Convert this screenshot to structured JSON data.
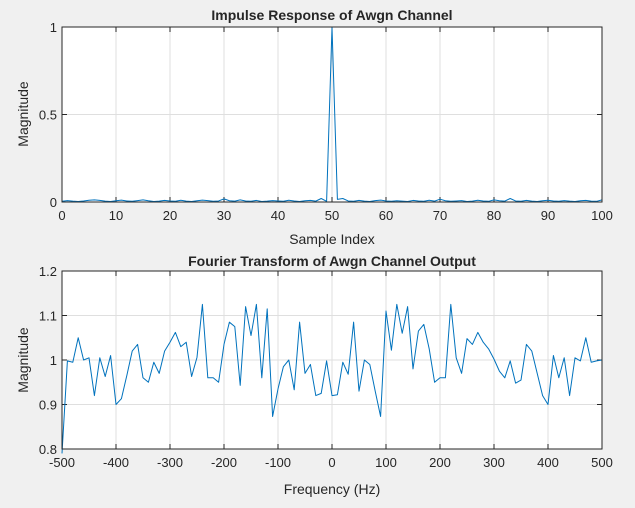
{
  "chart_data": [
    {
      "type": "line",
      "title": "Impulse Response of Awgn Channel",
      "xlabel": "Sample Index",
      "ylabel": "Magnitude",
      "xlim": [
        0,
        100
      ],
      "ylim": [
        0,
        1
      ],
      "xticks": [
        0,
        10,
        20,
        30,
        40,
        50,
        60,
        70,
        80,
        90,
        100
      ],
      "yticks": [
        0,
        0.5,
        1
      ],
      "grid": true,
      "series_color": "#0072bd",
      "x": [
        0,
        1,
        2,
        3,
        4,
        5,
        6,
        7,
        8,
        9,
        10,
        11,
        12,
        13,
        14,
        15,
        16,
        17,
        18,
        19,
        20,
        21,
        22,
        23,
        24,
        25,
        26,
        27,
        28,
        29,
        30,
        31,
        32,
        33,
        34,
        35,
        36,
        37,
        38,
        39,
        40,
        41,
        42,
        43,
        44,
        45,
        46,
        47,
        48,
        49,
        50,
        51,
        52,
        53,
        54,
        55,
        56,
        57,
        58,
        59,
        60,
        61,
        62,
        63,
        64,
        65,
        66,
        67,
        68,
        69,
        70,
        71,
        72,
        73,
        74,
        75,
        76,
        77,
        78,
        79,
        80,
        81,
        82,
        83,
        84,
        85,
        86,
        87,
        88,
        89,
        90,
        91,
        92,
        93,
        94,
        95,
        96,
        97,
        98,
        99,
        100
      ],
      "y": [
        0.004,
        0.008,
        0.005,
        0.003,
        0.006,
        0.01,
        0.012,
        0.009,
        0.005,
        0.003,
        0.007,
        0.011,
        0.006,
        0.004,
        0.008,
        0.012,
        0.007,
        0.003,
        0.005,
        0.009,
        0.006,
        0.004,
        0.01,
        0.005,
        0.003,
        0.007,
        0.011,
        0.008,
        0.004,
        0.006,
        0.018,
        0.007,
        0.005,
        0.012,
        0.006,
        0.004,
        0.009,
        0.003,
        0.005,
        0.008,
        0.006,
        0.004,
        0.01,
        0.006,
        0.003,
        0.007,
        0.009,
        0.005,
        0.02,
        0.004,
        1.0,
        0.015,
        0.02,
        0.006,
        0.004,
        0.009,
        0.005,
        0.003,
        0.008,
        0.011,
        0.006,
        0.004,
        0.007,
        0.005,
        0.003,
        0.009,
        0.006,
        0.004,
        0.01,
        0.005,
        0.016,
        0.007,
        0.004,
        0.006,
        0.008,
        0.003,
        0.005,
        0.01,
        0.006,
        0.004,
        0.012,
        0.007,
        0.005,
        0.02,
        0.006,
        0.004,
        0.009,
        0.005,
        0.003,
        0.007,
        0.01,
        0.006,
        0.004,
        0.008,
        0.005,
        0.003,
        0.007,
        0.009,
        0.005,
        0.004,
        0.012
      ]
    },
    {
      "type": "line",
      "title": "Fourier Transform of Awgn Channel Output",
      "xlabel": "Frequency (Hz)",
      "ylabel": "Magnitude",
      "xlim": [
        -500,
        500
      ],
      "ylim": [
        0.8,
        1.2
      ],
      "xticks": [
        -500,
        -400,
        -300,
        -200,
        -100,
        0,
        100,
        200,
        300,
        400,
        500
      ],
      "yticks": [
        0.8,
        0.9,
        1,
        1.1,
        1.2
      ],
      "grid": true,
      "series_color": "#0072bd",
      "x": [
        -500,
        -490,
        -480,
        -470,
        -460,
        -450,
        -440,
        -430,
        -420,
        -410,
        -400,
        -390,
        -380,
        -370,
        -360,
        -350,
        -340,
        -330,
        -320,
        -310,
        -300,
        -290,
        -280,
        -270,
        -260,
        -250,
        -240,
        -230,
        -220,
        -210,
        -200,
        -190,
        -180,
        -170,
        -160,
        -150,
        -140,
        -130,
        -120,
        -110,
        -100,
        -90,
        -80,
        -70,
        -60,
        -50,
        -40,
        -30,
        -20,
        -10,
        0,
        10,
        20,
        30,
        40,
        50,
        60,
        70,
        80,
        90,
        100,
        110,
        120,
        130,
        140,
        150,
        160,
        170,
        180,
        190,
        200,
        210,
        220,
        230,
        240,
        250,
        260,
        270,
        280,
        290,
        300,
        310,
        320,
        330,
        340,
        350,
        360,
        370,
        380,
        390,
        400,
        410,
        420,
        430,
        440,
        450,
        460,
        470,
        480,
        490,
        500
      ],
      "y": [
        0.79,
        0.998,
        0.995,
        1.05,
        1.0,
        1.005,
        0.92,
        1.005,
        0.963,
        1.01,
        0.9,
        0.913,
        0.965,
        1.02,
        1.035,
        0.96,
        0.95,
        0.995,
        0.97,
        1.02,
        1.04,
        1.062,
        1.03,
        1.04,
        0.963,
        1.006,
        1.125,
        0.96,
        0.96,
        0.95,
        1.035,
        1.085,
        1.075,
        0.943,
        1.12,
        1.055,
        1.125,
        0.96,
        1.115,
        0.873,
        0.935,
        0.985,
        1.0,
        0.933,
        1.085,
        0.97,
        0.99,
        0.92,
        0.925,
        0.998,
        0.92,
        0.922,
        0.995,
        0.968,
        1.085,
        0.93,
        1.0,
        0.99,
        0.93,
        0.873,
        1.11,
        1.022,
        1.125,
        1.06,
        1.12,
        0.98,
        1.065,
        1.08,
        1.025,
        0.95,
        0.96,
        0.96,
        1.125,
        1.005,
        0.97,
        1.048,
        1.035,
        1.062,
        1.04,
        1.025,
        1.002,
        0.975,
        0.96,
        0.998,
        0.948,
        0.955,
        1.035,
        1.02,
        0.97,
        0.92,
        0.9,
        1.01,
        0.96,
        1.005,
        0.92,
        1.005,
        0.998,
        1.05,
        0.995,
        0.998,
        1.0
      ]
    }
  ]
}
